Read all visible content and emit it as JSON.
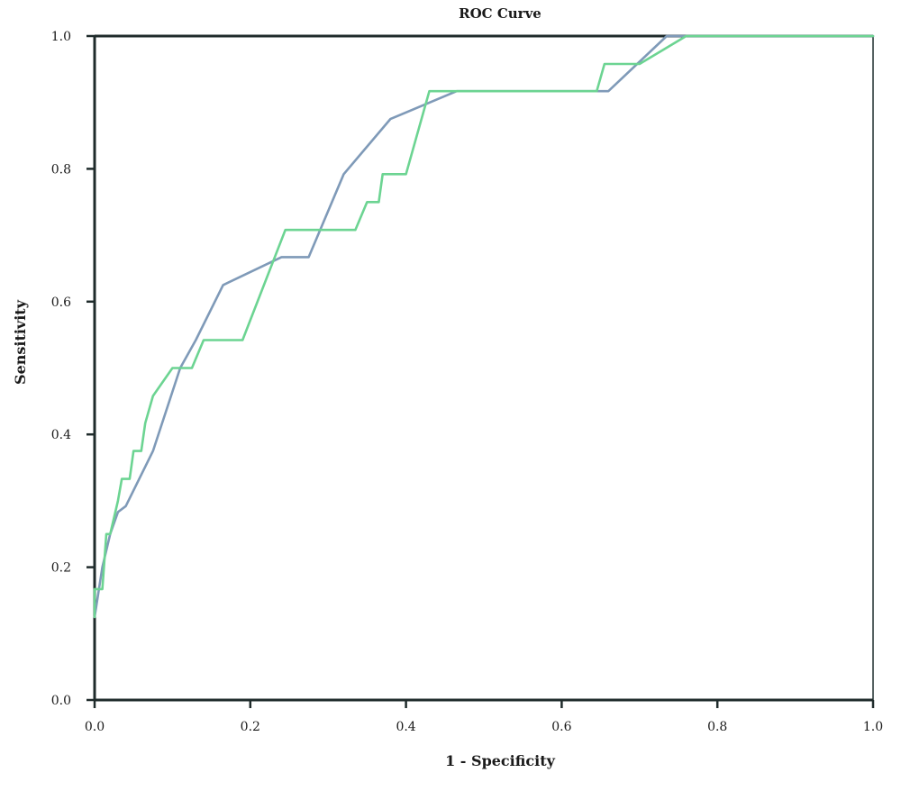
{
  "chart_data": {
    "type": "line",
    "title": "ROC Curve",
    "xlabel": "1 - Specificity",
    "ylabel": "Sensitivity",
    "xlim": [
      0,
      1
    ],
    "ylim": [
      0,
      1
    ],
    "x_ticks": [
      "0.0",
      "0.2",
      "0.4",
      "0.6",
      "0.8",
      "1.0"
    ],
    "y_ticks": [
      "0.0",
      "0.2",
      "0.4",
      "0.6",
      "0.8",
      "1.0"
    ],
    "grid": false,
    "series": [
      {
        "color": "#7f9ab8",
        "points": [
          [
            0.0,
            0.125
          ],
          [
            0.01,
            0.2
          ],
          [
            0.02,
            0.25
          ],
          [
            0.03,
            0.283
          ],
          [
            0.04,
            0.292
          ],
          [
            0.075,
            0.375
          ],
          [
            0.11,
            0.5
          ],
          [
            0.13,
            0.542
          ],
          [
            0.165,
            0.625
          ],
          [
            0.24,
            0.667
          ],
          [
            0.275,
            0.667
          ],
          [
            0.32,
            0.792
          ],
          [
            0.38,
            0.875
          ],
          [
            0.465,
            0.917
          ],
          [
            0.66,
            0.917
          ],
          [
            0.735,
            1.0
          ],
          [
            1.0,
            1.0
          ]
        ]
      },
      {
        "color": "#6cd492",
        "points": [
          [
            0.0,
            0.125
          ],
          [
            0.0,
            0.167
          ],
          [
            0.01,
            0.167
          ],
          [
            0.015,
            0.25
          ],
          [
            0.02,
            0.25
          ],
          [
            0.03,
            0.3
          ],
          [
            0.035,
            0.333
          ],
          [
            0.045,
            0.333
          ],
          [
            0.05,
            0.375
          ],
          [
            0.06,
            0.375
          ],
          [
            0.065,
            0.417
          ],
          [
            0.075,
            0.458
          ],
          [
            0.1,
            0.5
          ],
          [
            0.125,
            0.5
          ],
          [
            0.14,
            0.542
          ],
          [
            0.19,
            0.542
          ],
          [
            0.245,
            0.708
          ],
          [
            0.335,
            0.708
          ],
          [
            0.35,
            0.75
          ],
          [
            0.365,
            0.75
          ],
          [
            0.37,
            0.792
          ],
          [
            0.4,
            0.792
          ],
          [
            0.43,
            0.917
          ],
          [
            0.645,
            0.917
          ],
          [
            0.655,
            0.958
          ],
          [
            0.7,
            0.958
          ],
          [
            0.76,
            1.0
          ],
          [
            1.0,
            1.0
          ]
        ]
      }
    ]
  }
}
